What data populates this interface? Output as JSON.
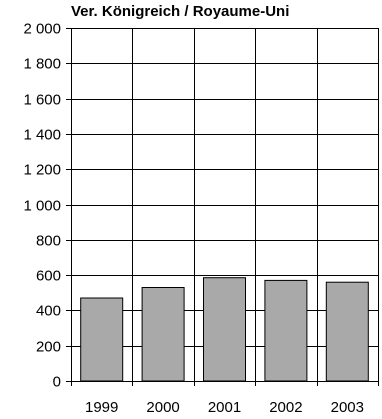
{
  "chart_data": {
    "type": "bar",
    "title": "Ver. Königreich / Royaume-Uni",
    "categories": [
      "1999",
      "2000",
      "2001",
      "2002",
      "2003"
    ],
    "values": [
      470,
      530,
      585,
      570,
      560
    ],
    "ylim": [
      0,
      2000
    ],
    "yticks": [
      0,
      200,
      400,
      600,
      800,
      1000,
      1200,
      1400,
      1600,
      1800,
      2000
    ],
    "ytick_labels": [
      "0",
      "200",
      "400",
      "600",
      "800",
      "1 000",
      "1 200",
      "1 400",
      "1 600",
      "1 800",
      "2 000"
    ],
    "xlabel": "",
    "ylabel": "",
    "grid": true,
    "legend": "none",
    "colors": {
      "bar_fill": "#a9a9a9",
      "bar_stroke": "#000000",
      "grid": "#000000",
      "text": "#000000"
    }
  }
}
